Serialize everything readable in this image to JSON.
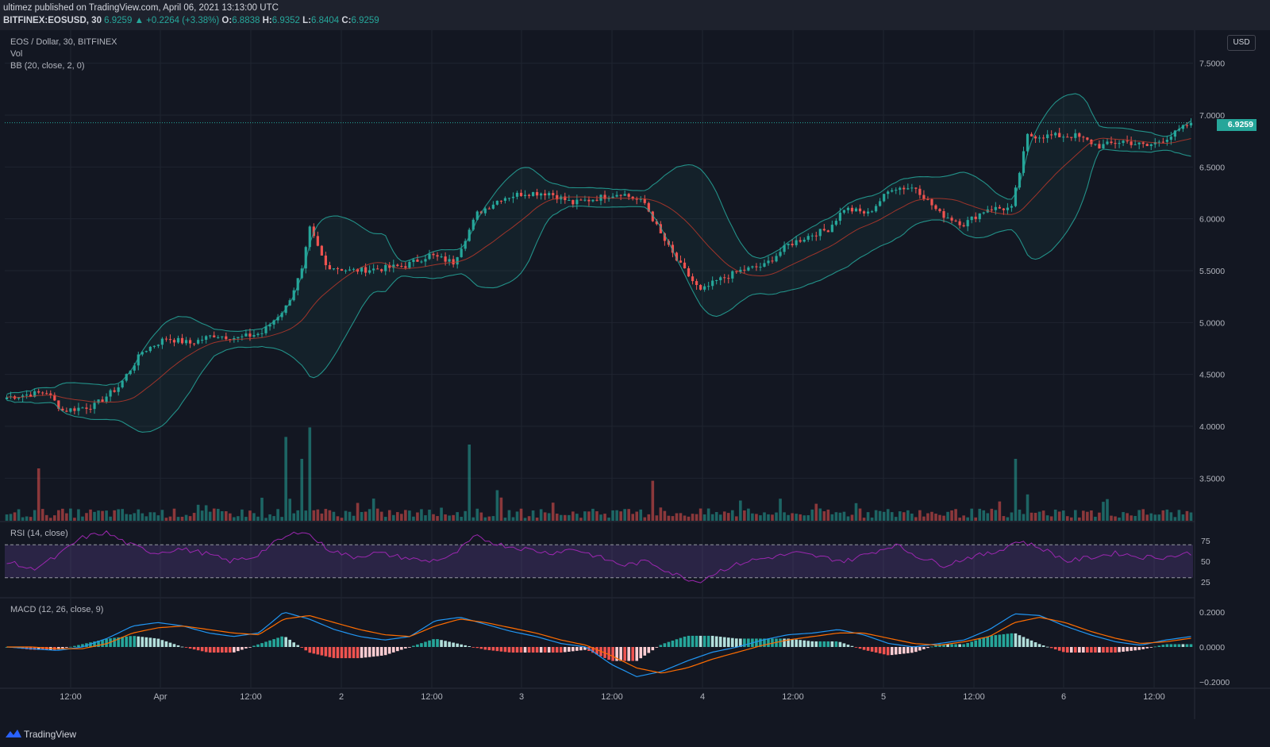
{
  "header": {
    "publish_line": "ultimez published on TradingView.com, April 06, 2021 13:13:00 UTC",
    "symbol": "BITFINEX:EOSUSD, 30",
    "last": "6.9259",
    "change": "▲ +0.2264 (+3.38%)",
    "open_label": "O:",
    "open": "6.8838",
    "high_label": "H:",
    "high": "6.9352",
    "low_label": "L:",
    "low": "6.8404",
    "close_label": "C:",
    "close": "6.9259"
  },
  "legends": {
    "main": "EOS / Dollar, 30, BITFINEX",
    "vol": "Vol",
    "bb": "BB (20, close, 2, 0)",
    "rsi": "RSI (14, close)",
    "macd": "MACD (12, 26, close, 9)"
  },
  "currency_button": "USD",
  "current_price_tag": "6.9259",
  "footer": {
    "brand": "TradingView"
  },
  "colors": {
    "background": "#131722",
    "up": "#26a69a",
    "down": "#ef5350",
    "bb_band": "#26a69a",
    "bb_basis": "#c0392b",
    "rsi_line": "#9c27b0",
    "macd_line": "#2196f3",
    "signal_line": "#ff6d00"
  },
  "chart_data": [
    {
      "type": "candlestick",
      "title": "EOS / Dollar, 30, BITFINEX",
      "y_axis": {
        "ticks": [
          "7.5000",
          "7.0000",
          "6.5000",
          "6.0000",
          "5.5000",
          "5.0000",
          "4.5000",
          "4.0000",
          "3.5000"
        ],
        "range": [
          3.2,
          7.75
        ]
      },
      "x_axis": {
        "ticks": [
          "12:00",
          "Apr",
          "12:00",
          "2",
          "12:00",
          "3",
          "12:00",
          "4",
          "12:00",
          "5",
          "12:00",
          "6",
          "12:00"
        ]
      },
      "close_path": [
        [
          0,
          4.28
        ],
        [
          10,
          4.33
        ],
        [
          14,
          4.15
        ],
        [
          22,
          4.2
        ],
        [
          28,
          4.38
        ],
        [
          34,
          4.72
        ],
        [
          40,
          4.85
        ],
        [
          46,
          4.8
        ],
        [
          52,
          4.88
        ],
        [
          58,
          4.85
        ],
        [
          64,
          4.9
        ],
        [
          70,
          5.15
        ],
        [
          74,
          5.5
        ],
        [
          76,
          5.9
        ],
        [
          80,
          5.55
        ],
        [
          86,
          5.5
        ],
        [
          94,
          5.52
        ],
        [
          100,
          5.55
        ],
        [
          106,
          5.65
        ],
        [
          112,
          5.58
        ],
        [
          118,
          6.05
        ],
        [
          124,
          6.2
        ],
        [
          130,
          6.25
        ],
        [
          136,
          6.25
        ],
        [
          142,
          6.15
        ],
        [
          148,
          6.2
        ],
        [
          154,
          6.25
        ],
        [
          160,
          6.15
        ],
        [
          164,
          5.85
        ],
        [
          168,
          5.6
        ],
        [
          174,
          5.3
        ],
        [
          178,
          5.4
        ],
        [
          184,
          5.5
        ],
        [
          190,
          5.55
        ],
        [
          196,
          5.75
        ],
        [
          202,
          5.85
        ],
        [
          206,
          5.9
        ],
        [
          210,
          6.1
        ],
        [
          216,
          6.05
        ],
        [
          222,
          6.3
        ],
        [
          228,
          6.3
        ],
        [
          234,
          6.05
        ],
        [
          240,
          5.95
        ],
        [
          246,
          6.1
        ],
        [
          252,
          6.1
        ],
        [
          256,
          6.8
        ],
        [
          262,
          6.8
        ],
        [
          268,
          6.8
        ],
        [
          274,
          6.7
        ],
        [
          280,
          6.75
        ],
        [
          286,
          6.7
        ],
        [
          292,
          6.8
        ],
        [
          297,
          6.93
        ]
      ],
      "bollinger": {
        "length": 20,
        "source": "close",
        "mult": 2,
        "offset": 0
      },
      "last_price": 6.9259,
      "volume": {
        "name": "Vol",
        "spikes": [
          [
            8,
            0.55
          ],
          [
            70,
            0.88
          ],
          [
            74,
            0.65
          ],
          [
            76,
            0.98
          ],
          [
            116,
            0.8
          ],
          [
            162,
            0.42
          ],
          [
            253,
            0.65
          ]
        ]
      }
    },
    {
      "type": "line",
      "title": "RSI (14, close)",
      "y_ticks": [
        "75",
        "50",
        "25"
      ],
      "range": [
        0,
        100
      ],
      "levels": [
        30,
        70
      ],
      "values": [
        50,
        40,
        55,
        78,
        85,
        70,
        60,
        65,
        60,
        50,
        55,
        75,
        88,
        65,
        55,
        60,
        55,
        50,
        55,
        80,
        70,
        65,
        60,
        65,
        55,
        45,
        50,
        35,
        25,
        40,
        50,
        55,
        60,
        55,
        50,
        60,
        70,
        55,
        45,
        55,
        60,
        75,
        65,
        50,
        55,
        60,
        55,
        55,
        60
      ]
    },
    {
      "type": "line",
      "title": "MACD (12, 26, close, 9)",
      "y_ticks": [
        "0.2000",
        "0.0000",
        "−0.2000"
      ],
      "range": [
        -0.25,
        0.25
      ],
      "series": [
        {
          "name": "MACD",
          "values": [
            0,
            -0.01,
            -0.02,
            0.0,
            0.05,
            0.12,
            0.14,
            0.12,
            0.08,
            0.06,
            0.08,
            0.2,
            0.16,
            0.1,
            0.06,
            0.04,
            0.06,
            0.15,
            0.17,
            0.13,
            0.09,
            0.06,
            0.02,
            0.0,
            -0.1,
            -0.17,
            -0.14,
            -0.08,
            -0.03,
            0.0,
            0.04,
            0.07,
            0.08,
            0.1,
            0.07,
            0.02,
            0.0,
            0.02,
            0.04,
            0.1,
            0.19,
            0.18,
            0.12,
            0.07,
            0.03,
            0.01,
            0.04,
            0.06
          ]
        },
        {
          "name": "Signal",
          "values": [
            0,
            0.0,
            -0.01,
            -0.01,
            0.02,
            0.08,
            0.11,
            0.12,
            0.1,
            0.08,
            0.07,
            0.16,
            0.18,
            0.14,
            0.1,
            0.07,
            0.06,
            0.12,
            0.16,
            0.14,
            0.11,
            0.08,
            0.04,
            0.01,
            -0.05,
            -0.12,
            -0.15,
            -0.12,
            -0.07,
            -0.03,
            0.01,
            0.04,
            0.06,
            0.08,
            0.08,
            0.05,
            0.02,
            0.01,
            0.03,
            0.06,
            0.14,
            0.17,
            0.14,
            0.09,
            0.05,
            0.02,
            0.03,
            0.05
          ]
        }
      ]
    }
  ]
}
